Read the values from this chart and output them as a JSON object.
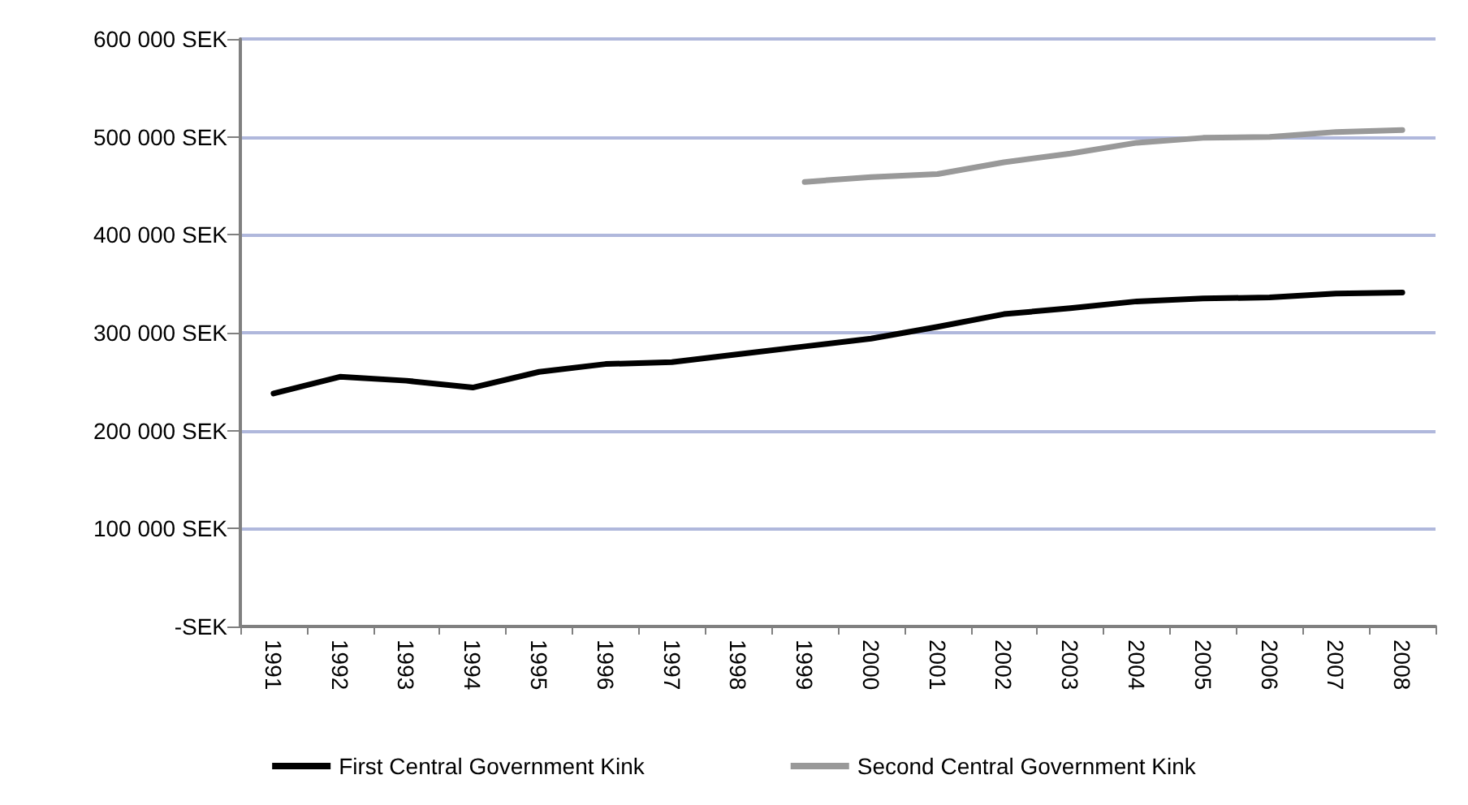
{
  "chart_data": {
    "type": "line",
    "categories": [
      "1991",
      "1992",
      "1993",
      "1994",
      "1995",
      "1996",
      "1997",
      "1998",
      "1999",
      "2000",
      "2001",
      "2002",
      "2003",
      "2004",
      "2005",
      "2006",
      "2007",
      "2008"
    ],
    "series": [
      {
        "name": "First Central Government Kink",
        "color": "#000000",
        "values": [
          238000,
          255000,
          251000,
          244000,
          260000,
          268000,
          270000,
          278000,
          286000,
          294000,
          306000,
          319000,
          325000,
          332000,
          335000,
          336000,
          340000,
          341000
        ]
      },
      {
        "name": "Second Central Government Kink",
        "color": "#999999",
        "values": [
          null,
          null,
          null,
          null,
          null,
          null,
          null,
          null,
          454000,
          459000,
          462000,
          474000,
          483000,
          494000,
          499000,
          500000,
          505000,
          507000
        ]
      }
    ],
    "ylim": [
      0,
      600000
    ],
    "yticks": [
      {
        "value": 0,
        "label": "-SEK"
      },
      {
        "value": 100000,
        "label": "100 000 SEK"
      },
      {
        "value": 200000,
        "label": "200 000 SEK"
      },
      {
        "value": 300000,
        "label": "300 000 SEK"
      },
      {
        "value": 400000,
        "label": "400 000 SEK"
      },
      {
        "value": 500000,
        "label": "500 000 SEK"
      },
      {
        "value": 600000,
        "label": "600 000 SEK"
      }
    ],
    "grid": "y",
    "legend": "bottom",
    "marker": "none",
    "line_style": "solid"
  }
}
